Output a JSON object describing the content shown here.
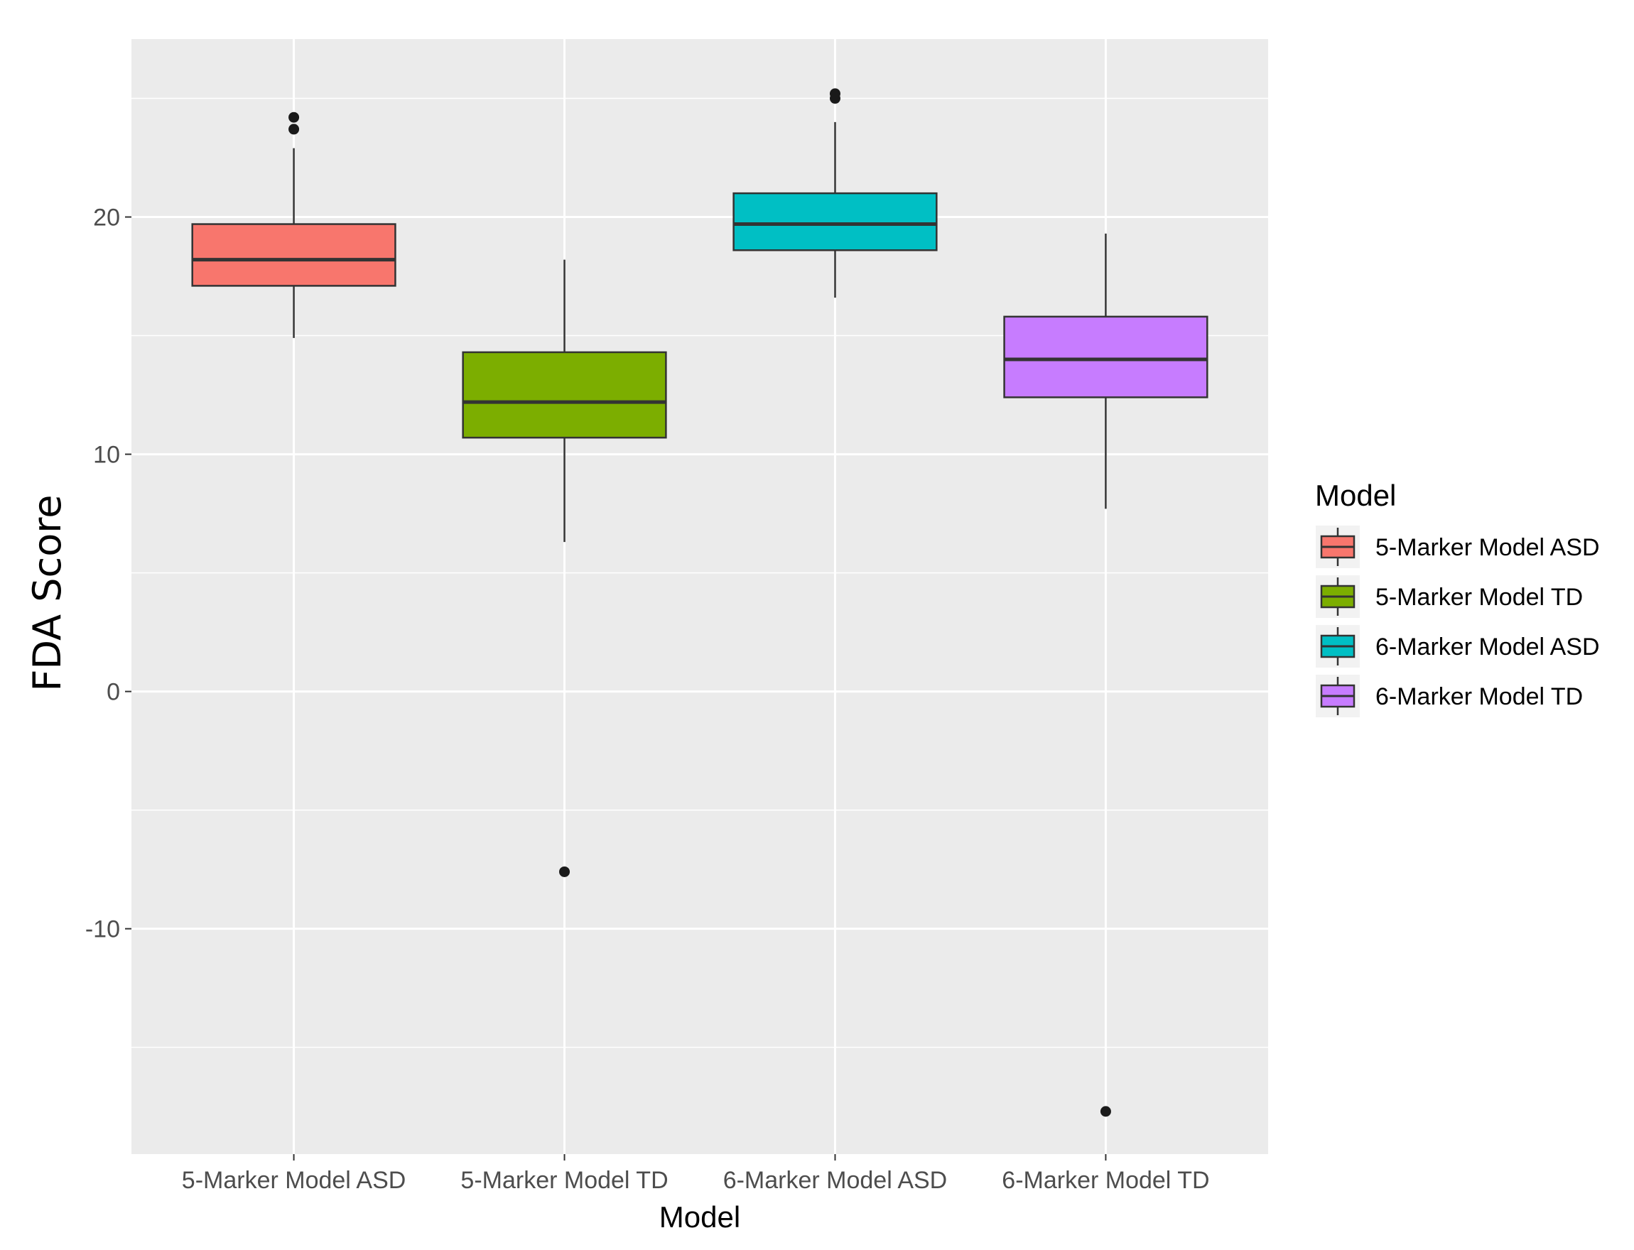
{
  "chart_data": {
    "type": "boxplot",
    "title": "",
    "xlabel": "Model",
    "ylabel": "FDA Score",
    "ylim": [
      -19.5,
      27.5
    ],
    "yticks": [
      -10,
      0,
      10,
      20
    ],
    "grid": true,
    "legend": {
      "title": "Model",
      "placement": "right",
      "entries": [
        "5-Marker Model ASD",
        "5-Marker Model TD",
        "6-Marker Model ASD",
        "6-Marker Model TD"
      ]
    },
    "categories": [
      "5-Marker Model ASD",
      "5-Marker Model TD",
      "6-Marker Model ASD",
      "6-Marker Model TD"
    ],
    "series": [
      {
        "category": "5-Marker Model ASD",
        "color": "#F8766D",
        "whisker_low": 14.9,
        "q1": 17.1,
        "median": 18.2,
        "q3": 19.7,
        "whisker_high": 22.9,
        "outliers": [
          23.7,
          24.2
        ]
      },
      {
        "category": "5-Marker Model TD",
        "color": "#7CAE00",
        "whisker_low": 6.3,
        "q1": 10.7,
        "median": 12.2,
        "q3": 14.3,
        "whisker_high": 18.2,
        "outliers": [
          -7.6
        ]
      },
      {
        "category": "6-Marker Model ASD",
        "color": "#00BFC4",
        "whisker_low": 16.6,
        "q1": 18.6,
        "median": 19.7,
        "q3": 21.0,
        "whisker_high": 24.0,
        "outliers": [
          25.0,
          25.2
        ]
      },
      {
        "category": "6-Marker Model TD",
        "color": "#C77CFF",
        "whisker_low": 7.7,
        "q1": 12.4,
        "median": 14.0,
        "q3": 15.8,
        "whisker_high": 19.3,
        "outliers": [
          -17.7
        ]
      }
    ]
  }
}
